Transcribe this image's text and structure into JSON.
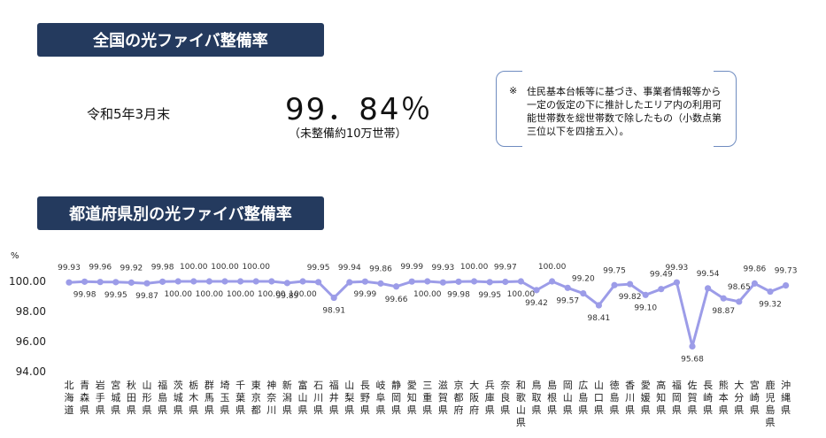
{
  "header": {
    "national_title": "全国の光ファイバ整備率",
    "date_label": "令和5年3月末",
    "national_rate": "99．84％",
    "national_sub": "（未整備約10万世帯）",
    "note_mark": "※",
    "note_text": "住民基本台帳等に基づき、事業者情報等から一定の仮定の下に推計したエリア内の利用可能世帯数を総世帯数で除したもの（小数点第三位以下を四捨五入）。",
    "prefecture_title": "都道府県別の光ファイバ整備率"
  },
  "colors": {
    "banner": "#243a5e",
    "line": "#9c9ce8",
    "marker": "#9c9ce8",
    "box_border": "#6f8cc0"
  },
  "chart_data": {
    "type": "line",
    "title": "都道府県別の光ファイバ整備率",
    "ylabel": "%",
    "xlabel": "",
    "ylim": [
      94.0,
      100.0
    ],
    "yticks": [
      "94.00",
      "96.00",
      "98.00",
      "100.00"
    ],
    "grid": false,
    "categories": [
      "北海道",
      "青森県",
      "岩手県",
      "宮城県",
      "秋田県",
      "山形県",
      "福島県",
      "茨城県",
      "栃木県",
      "群馬県",
      "埼玉県",
      "千葉県",
      "東京都",
      "神奈川",
      "新潟県",
      "富山県",
      "石川県",
      "福井県",
      "山梨県",
      "長野県",
      "岐阜県",
      "静岡県",
      "愛知県",
      "三重県",
      "滋賀県",
      "京都府",
      "大阪府",
      "兵庫県",
      "奈良県",
      "和歌山県",
      "鳥取県",
      "島根県",
      "岡山県",
      "広島県",
      "山口県",
      "徳島県",
      "香川県",
      "愛媛県",
      "高知県",
      "福岡県",
      "佐賀県",
      "長崎県",
      "熊本県",
      "大分県",
      "宮崎県",
      "鹿児島県",
      "沖縄県"
    ],
    "values": [
      99.93,
      99.98,
      99.96,
      99.95,
      99.92,
      99.87,
      99.98,
      100.0,
      100.0,
      100.0,
      100.0,
      100.0,
      100.0,
      100.0,
      99.89,
      100.0,
      99.95,
      98.91,
      99.94,
      99.99,
      99.86,
      99.66,
      99.99,
      100.0,
      99.93,
      99.98,
      100.0,
      99.95,
      99.97,
      100.0,
      99.42,
      100.0,
      99.57,
      99.2,
      98.41,
      99.75,
      99.82,
      99.1,
      99.49,
      99.93,
      95.68,
      99.54,
      98.87,
      98.65,
      99.86,
      99.32,
      99.73
    ],
    "value_labels": [
      "99.93",
      "99.98",
      "99.96",
      "99.95",
      "99.92",
      "99.87",
      "99.98",
      "100.00",
      "100.00",
      "100.00",
      "100.00",
      "100.00",
      "100.00",
      "100.00",
      "99.89",
      "100.00",
      "99.95",
      "98.91",
      "99.94",
      "99.99",
      "99.86",
      "99.66",
      "99.99",
      "100.00",
      "99.93",
      "99.98",
      "100.00",
      "99.95",
      "99.97",
      "100.00",
      "99.42",
      "100.00",
      "99.57",
      "99.20",
      "98.41",
      "99.75",
      "99.82",
      "99.10",
      "99.49",
      "99.93",
      "95.68",
      "99.54",
      "98.87",
      "98.65",
      "99.86",
      "99.32",
      "99.73"
    ],
    "label_above": [
      true,
      false,
      true,
      false,
      true,
      false,
      true,
      false,
      true,
      false,
      true,
      false,
      true,
      false,
      false,
      false,
      true,
      false,
      true,
      false,
      true,
      false,
      true,
      false,
      true,
      false,
      true,
      false,
      true,
      false,
      false,
      true,
      false,
      true,
      false,
      true,
      false,
      false,
      true,
      true,
      false,
      true,
      false,
      true,
      true,
      false,
      true
    ]
  }
}
